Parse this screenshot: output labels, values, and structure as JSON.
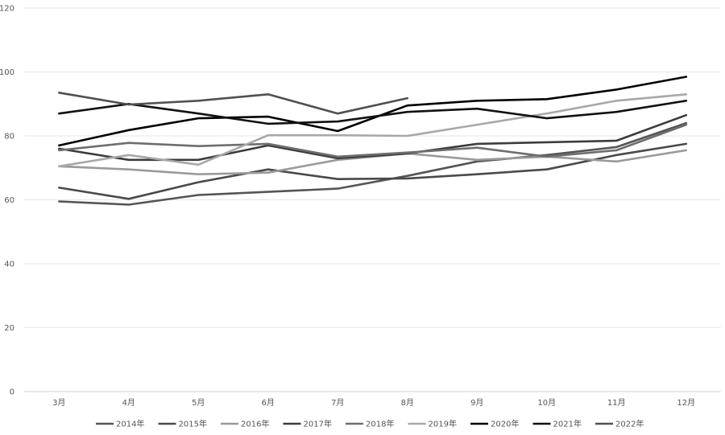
{
  "chart_data": {
    "type": "line",
    "title": "",
    "xlabel": "",
    "ylabel": "",
    "categories": [
      "3月",
      "4月",
      "5月",
      "6月",
      "7月",
      "8月",
      "9月",
      "10月",
      "11月",
      "12月"
    ],
    "y_ticks": [
      "0",
      "20",
      "40",
      "60",
      "80",
      "100",
      "120"
    ],
    "ylim": [
      0,
      120
    ],
    "grid": "horizontal",
    "legend_position": "bottom",
    "series": [
      {
        "name": "2014年",
        "color": "#555555",
        "values": [
          59.5,
          58.5,
          61.5,
          62.5,
          63.5,
          67.5,
          72.0,
          74.0,
          76.5,
          84.0
        ]
      },
      {
        "name": "2015年",
        "color": "#4a4a4a",
        "values": [
          63.8,
          60.3,
          65.5,
          69.5,
          66.5,
          66.7,
          68.0,
          69.5,
          74.0,
          77.5
        ]
      },
      {
        "name": "2016年",
        "color": "#9a9a9a",
        "values": [
          70.5,
          69.5,
          68.0,
          68.5,
          72.5,
          74.5,
          72.5,
          73.5,
          72.0,
          75.5
        ]
      },
      {
        "name": "2017年",
        "color": "#3c3c3c",
        "values": [
          76.0,
          72.5,
          72.5,
          77.0,
          73.0,
          74.5,
          77.5,
          78.0,
          78.5,
          86.5
        ]
      },
      {
        "name": "2018年",
        "color": "#6e6e6e",
        "values": [
          75.5,
          77.8,
          76.8,
          77.5,
          73.5,
          74.8,
          76.3,
          73.5,
          75.5,
          83.5
        ]
      },
      {
        "name": "2019年",
        "color": "#a8a8a8",
        "values": [
          70.5,
          74.0,
          71.0,
          80.2,
          80.2,
          80.0,
          83.5,
          87.0,
          91.0,
          93.0
        ]
      },
      {
        "name": "2020年",
        "color": "#000000",
        "values": [
          77.0,
          81.8,
          85.5,
          86.0,
          81.5,
          89.5,
          91.0,
          91.5,
          94.5,
          98.5
        ]
      },
      {
        "name": "2021年",
        "color": "#111111",
        "values": [
          87.0,
          90.0,
          87.0,
          83.8,
          84.5,
          87.5,
          88.5,
          85.5,
          87.5,
          91.0
        ]
      },
      {
        "name": "2022年",
        "color": "#505050",
        "values": [
          93.5,
          89.8,
          91.0,
          93.0,
          87.0,
          91.8,
          null,
          null,
          null,
          null
        ]
      }
    ]
  }
}
